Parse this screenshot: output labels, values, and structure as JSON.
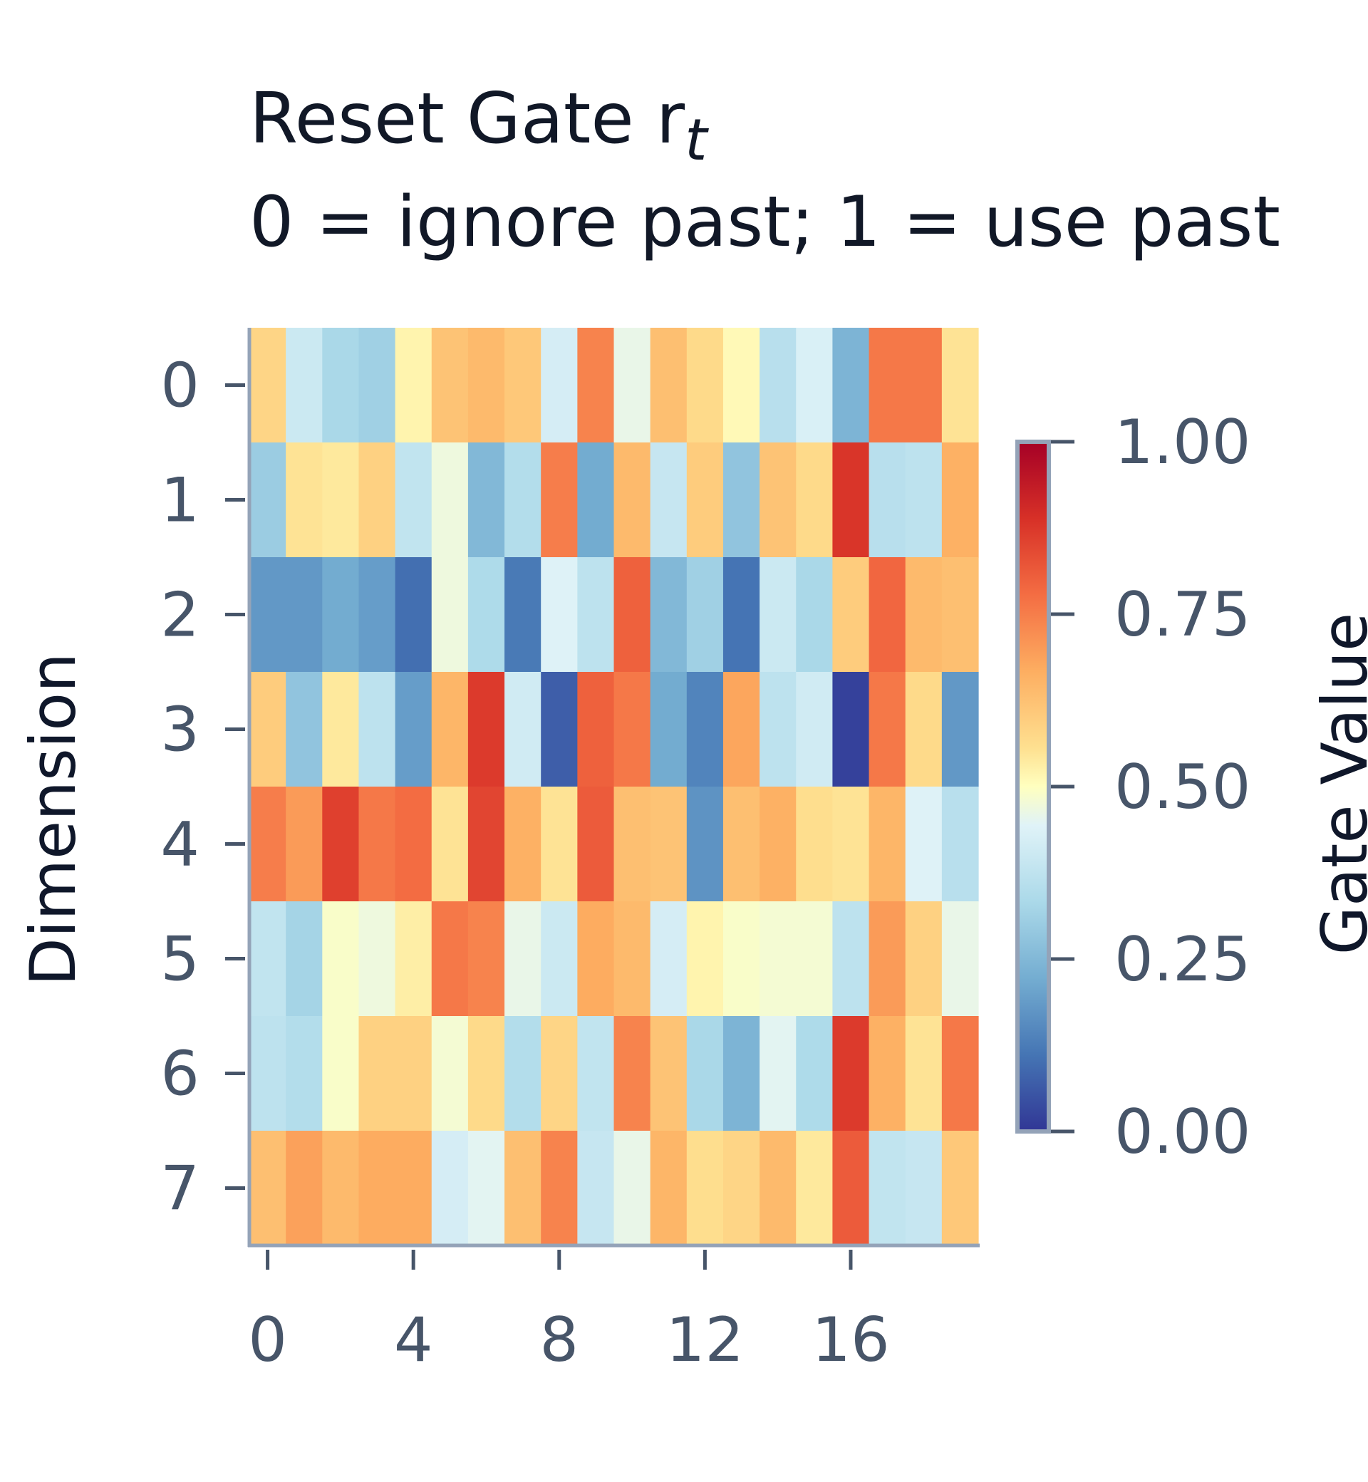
{
  "chart_data": {
    "type": "heatmap",
    "title": "Reset Gate r",
    "title_subscript": "t",
    "subtitle": "0 = ignore past; 1 = use past",
    "xlabel": "",
    "ylabel": "Dimension",
    "colorbar_label": "Gate Value",
    "colormap": "RdYlBu_r",
    "vmin": 0.0,
    "vmax": 1.0,
    "x_tick_labels": [
      "0",
      "4",
      "8",
      "12",
      "16"
    ],
    "x_tick_positions": [
      0,
      4,
      8,
      12,
      16
    ],
    "y_tick_labels": [
      "0",
      "1",
      "2",
      "3",
      "4",
      "5",
      "6",
      "7"
    ],
    "colorbar_tick_labels": [
      "1.00",
      "0.75",
      "0.50",
      "0.25",
      "0.00"
    ],
    "colorbar_tick_values": [
      1.0,
      0.75,
      0.5,
      0.25,
      0.0
    ],
    "grid": false,
    "rows": 8,
    "cols": 20,
    "values": [
      [
        0.58,
        0.4,
        0.33,
        0.31,
        0.52,
        0.62,
        0.64,
        0.61,
        0.42,
        0.74,
        0.46,
        0.63,
        0.57,
        0.51,
        0.36,
        0.43,
        0.24,
        0.76,
        0.76,
        0.55
      ],
      [
        0.3,
        0.55,
        0.54,
        0.59,
        0.38,
        0.47,
        0.25,
        0.35,
        0.75,
        0.22,
        0.64,
        0.39,
        0.6,
        0.28,
        0.62,
        0.57,
        0.88,
        0.36,
        0.37,
        0.66
      ],
      [
        0.18,
        0.18,
        0.22,
        0.19,
        0.1,
        0.47,
        0.34,
        0.12,
        0.44,
        0.37,
        0.8,
        0.25,
        0.31,
        0.11,
        0.4,
        0.33,
        0.6,
        0.79,
        0.64,
        0.63
      ],
      [
        0.6,
        0.28,
        0.54,
        0.37,
        0.19,
        0.65,
        0.87,
        0.41,
        0.07,
        0.8,
        0.76,
        0.22,
        0.14,
        0.68,
        0.37,
        0.41,
        0.02,
        0.76,
        0.57,
        0.18
      ],
      [
        0.75,
        0.7,
        0.86,
        0.76,
        0.78,
        0.55,
        0.85,
        0.66,
        0.55,
        0.81,
        0.63,
        0.62,
        0.17,
        0.63,
        0.66,
        0.56,
        0.55,
        0.65,
        0.44,
        0.36
      ],
      [
        0.38,
        0.32,
        0.49,
        0.47,
        0.53,
        0.76,
        0.74,
        0.46,
        0.4,
        0.67,
        0.64,
        0.42,
        0.52,
        0.49,
        0.48,
        0.48,
        0.37,
        0.7,
        0.59,
        0.46
      ],
      [
        0.37,
        0.35,
        0.49,
        0.59,
        0.59,
        0.48,
        0.57,
        0.35,
        0.58,
        0.38,
        0.74,
        0.62,
        0.33,
        0.24,
        0.45,
        0.34,
        0.87,
        0.66,
        0.55,
        0.76
      ],
      [
        0.63,
        0.69,
        0.64,
        0.67,
        0.67,
        0.42,
        0.45,
        0.63,
        0.74,
        0.39,
        0.46,
        0.65,
        0.56,
        0.58,
        0.64,
        0.54,
        0.81,
        0.38,
        0.39,
        0.61
      ]
    ]
  }
}
